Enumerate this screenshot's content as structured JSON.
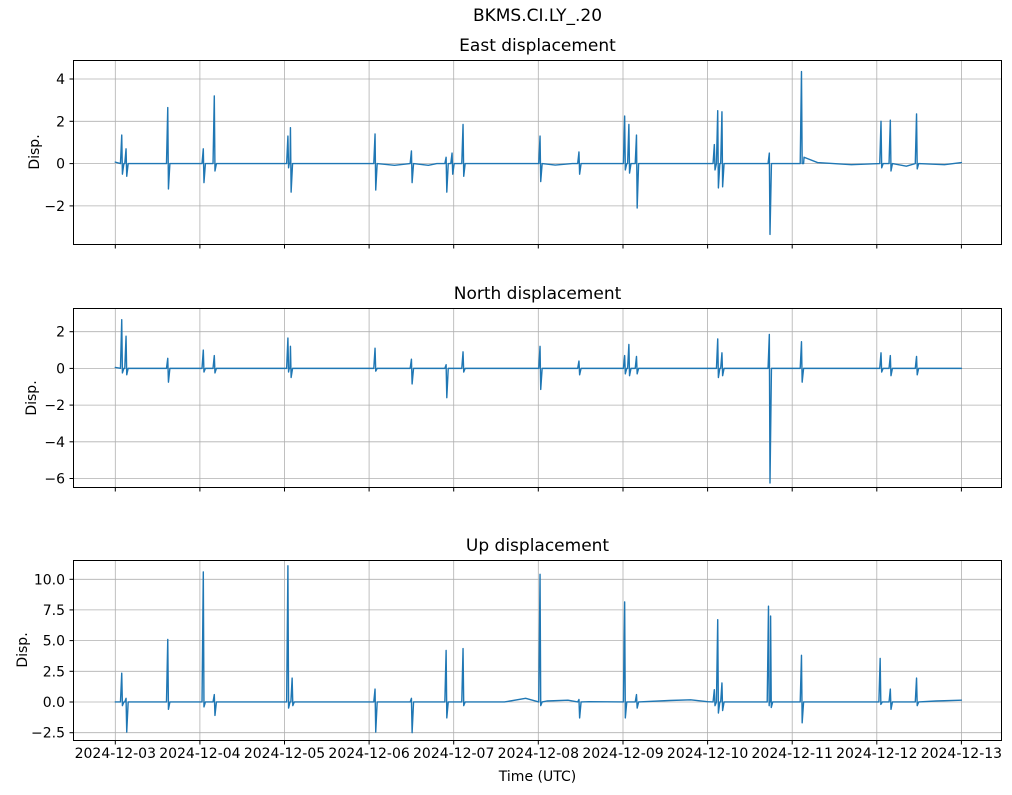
{
  "figure": {
    "suptitle": "BKMS.CI.LY_.20",
    "colors": {
      "line": "#1f77b4",
      "grid": "#b0b0b0",
      "axes_edge": "#000000",
      "text": "#000000",
      "background": "#ffffff"
    }
  },
  "chart_data": [
    {
      "id": "east",
      "type": "line",
      "title": "East displacement",
      "ylabel": "Disp.",
      "xlabel": "",
      "x_unit": "days since 2024-12-03 00:00 UTC",
      "grid": true,
      "show_x_labels": false,
      "xlim": [
        -0.5,
        10.48
      ],
      "ylim": [
        -3.85,
        4.9
      ],
      "xticks": [
        0,
        1,
        2,
        3,
        4,
        5,
        6,
        7,
        8,
        9,
        10
      ],
      "xtick_labels": [
        "2024-12-03",
        "2024-12-04",
        "2024-12-05",
        "2024-12-06",
        "2024-12-07",
        "2024-12-08",
        "2024-12-09",
        "2024-12-10",
        "2024-12-11",
        "2024-12-12",
        "2024-12-13"
      ],
      "yticks": [
        -2,
        0,
        2,
        4
      ],
      "ytick_labels": [
        "−2",
        "0",
        "2",
        "4"
      ],
      "baseline": [
        [
          0,
          0.07
        ],
        [
          1.5,
          0
        ],
        [
          3.3,
          -0.08
        ],
        [
          3.7,
          -0.08
        ],
        [
          3.8,
          0
        ],
        [
          5.2,
          -0.07
        ],
        [
          5.4,
          0
        ],
        [
          8.14,
          0.3
        ],
        [
          8.3,
          0.05
        ],
        [
          8.7,
          -0.05
        ],
        [
          9.35,
          -0.12
        ],
        [
          9.8,
          -0.05
        ],
        [
          10,
          0.05
        ]
      ],
      "spikes": [
        [
          0.076,
          1.35,
          -0.5
        ],
        [
          0.127,
          0.7,
          -0.6
        ],
        [
          0.62,
          2.65,
          -1.2
        ],
        [
          1.04,
          0.7,
          -0.9
        ],
        [
          1.17,
          3.2,
          -0.35
        ],
        [
          2.04,
          1.3,
          -0.2
        ],
        [
          2.07,
          1.7,
          -1.35
        ],
        [
          3.07,
          1.4,
          -1.25
        ],
        [
          3.5,
          0.6,
          -0.9
        ],
        [
          3.91,
          0.3,
          -1.35
        ],
        [
          3.98,
          0.5,
          -0.5
        ],
        [
          4.11,
          1.85,
          -0.6
        ],
        [
          5.02,
          1.3,
          -0.85
        ],
        [
          5.48,
          0.55,
          -0.5
        ],
        [
          6.02,
          2.25,
          -0.3
        ],
        [
          6.07,
          1.85,
          -0.45
        ],
        [
          6.16,
          1.35,
          -2.1
        ],
        [
          7.08,
          0.9,
          -0.3
        ],
        [
          7.12,
          2.5,
          -1.15
        ],
        [
          7.17,
          2.45,
          -1.1
        ],
        [
          7.73,
          0.5,
          -3.35
        ],
        [
          8.11,
          4.35,
          0.0
        ],
        [
          9.05,
          2.0,
          -0.2
        ],
        [
          9.16,
          2.05,
          -0.35
        ],
        [
          9.47,
          2.35,
          -0.25
        ]
      ]
    },
    {
      "id": "north",
      "type": "line",
      "title": "North displacement",
      "ylabel": "Disp.",
      "xlabel": "",
      "x_unit": "days since 2024-12-03 00:00 UTC",
      "grid": true,
      "show_x_labels": false,
      "xlim": [
        -0.5,
        10.48
      ],
      "ylim": [
        -6.52,
        3.29
      ],
      "xticks": [
        0,
        1,
        2,
        3,
        4,
        5,
        6,
        7,
        8,
        9,
        10
      ],
      "xtick_labels": [
        "2024-12-03",
        "2024-12-04",
        "2024-12-05",
        "2024-12-06",
        "2024-12-07",
        "2024-12-08",
        "2024-12-09",
        "2024-12-10",
        "2024-12-11",
        "2024-12-12",
        "2024-12-13"
      ],
      "yticks": [
        -6,
        -4,
        -2,
        0,
        2
      ],
      "ytick_labels": [
        "−6",
        "−4",
        "−2",
        "0",
        "2"
      ],
      "baseline": [
        [
          0,
          0.05
        ],
        [
          5,
          0
        ],
        [
          10,
          0
        ]
      ],
      "spikes": [
        [
          0.076,
          2.65,
          -0.25
        ],
        [
          0.127,
          1.75,
          -0.35
        ],
        [
          0.62,
          0.55,
          -0.75
        ],
        [
          1.04,
          1.0,
          -0.2
        ],
        [
          1.17,
          0.7,
          -0.25
        ],
        [
          2.04,
          1.65,
          -0.2
        ],
        [
          2.07,
          1.2,
          -0.5
        ],
        [
          3.07,
          1.1,
          -0.15
        ],
        [
          3.5,
          0.5,
          -0.85
        ],
        [
          3.91,
          0.2,
          -1.6
        ],
        [
          4.11,
          0.9,
          -0.2
        ],
        [
          5.02,
          1.2,
          -1.15
        ],
        [
          5.48,
          0.4,
          -0.35
        ],
        [
          6.02,
          0.7,
          -0.3
        ],
        [
          6.07,
          1.3,
          -0.4
        ],
        [
          6.16,
          0.65,
          -0.3
        ],
        [
          7.12,
          1.6,
          -0.5
        ],
        [
          7.17,
          0.85,
          -0.4
        ],
        [
          7.73,
          1.85,
          -6.25
        ],
        [
          8.11,
          1.45,
          -0.75
        ],
        [
          9.05,
          0.85,
          -0.2
        ],
        [
          9.16,
          0.7,
          -0.4
        ],
        [
          9.47,
          0.65,
          -0.35
        ]
      ]
    },
    {
      "id": "up",
      "type": "line",
      "title": "Up displacement",
      "ylabel": "Disp.",
      "xlabel": "Time (UTC)",
      "x_unit": "days since 2024-12-03 00:00 UTC",
      "grid": true,
      "show_x_labels": true,
      "xlim": [
        -0.5,
        10.48
      ],
      "ylim": [
        -3.18,
        11.57
      ],
      "xticks": [
        0,
        1,
        2,
        3,
        4,
        5,
        6,
        7,
        8,
        9,
        10
      ],
      "xtick_labels": [
        "2024-12-03",
        "2024-12-04",
        "2024-12-05",
        "2024-12-06",
        "2024-12-07",
        "2024-12-08",
        "2024-12-09",
        "2024-12-10",
        "2024-12-11",
        "2024-12-12",
        "2024-12-13"
      ],
      "yticks": [
        -2.5,
        0,
        2.5,
        5,
        7.5,
        10
      ],
      "ytick_labels": [
        "−2.5",
        "0.0",
        "2.5",
        "5.0",
        "7.5",
        "10.0"
      ],
      "baseline": [
        [
          0,
          0
        ],
        [
          4.6,
          0
        ],
        [
          4.85,
          0.3
        ],
        [
          5.1,
          0.08
        ],
        [
          5.35,
          0.15
        ],
        [
          5.6,
          0.02
        ],
        [
          6.55,
          0.12
        ],
        [
          6.8,
          0.18
        ],
        [
          7.0,
          0.02
        ],
        [
          9.7,
          0.08
        ],
        [
          10,
          0.15
        ]
      ],
      "spikes": [
        [
          0.076,
          2.35,
          -0.3
        ],
        [
          0.127,
          0.3,
          -2.45
        ],
        [
          0.62,
          5.1,
          -0.6
        ],
        [
          1.04,
          10.6,
          -0.4
        ],
        [
          1.17,
          0.6,
          -1.1
        ],
        [
          2.04,
          11.1,
          -0.5
        ],
        [
          2.09,
          1.95,
          -0.3
        ],
        [
          3.07,
          1.05,
          -2.45
        ],
        [
          3.5,
          0.3,
          -2.5
        ],
        [
          3.91,
          4.2,
          -1.3
        ],
        [
          4.11,
          4.35,
          -0.3
        ],
        [
          5.02,
          10.4,
          -0.3
        ],
        [
          5.48,
          0.2,
          -1.3
        ],
        [
          6.02,
          8.15,
          -1.3
        ],
        [
          6.16,
          0.6,
          -0.5
        ],
        [
          7.08,
          1.0,
          -0.3
        ],
        [
          7.12,
          6.7,
          -0.9
        ],
        [
          7.17,
          1.55,
          -0.7
        ],
        [
          7.72,
          7.8,
          -0.3
        ],
        [
          7.745,
          7.0,
          -0.45
        ],
        [
          8.11,
          3.8,
          -1.7
        ],
        [
          9.04,
          3.55,
          -0.2
        ],
        [
          9.16,
          1.05,
          -0.6
        ],
        [
          9.47,
          1.95,
          -0.3
        ]
      ]
    }
  ]
}
